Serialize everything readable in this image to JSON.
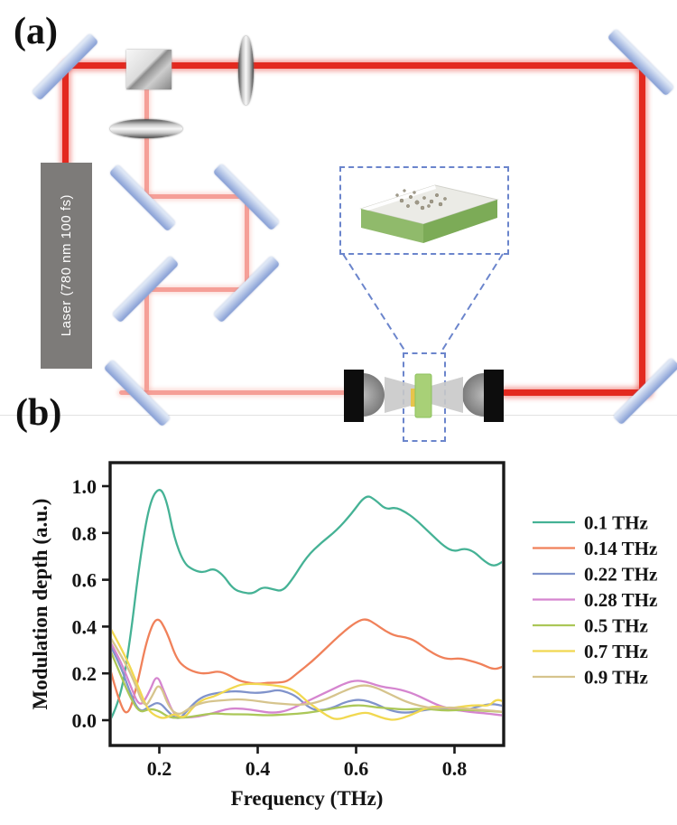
{
  "panel_a": {
    "label": "(a)",
    "laser_label": "Laser (780 nm 100 fs)"
  },
  "panel_b": {
    "label": "(b)"
  },
  "colors": {
    "beam_strong": "#e3291f",
    "beam_weak": "#f3877d",
    "mirror_light": "#dde6f5",
    "mirror_dark": "#8fa6d8",
    "laser_box": "#7d7b79",
    "dashed_outline": "#6b85cc",
    "sample_green": "#a8d077",
    "thz_beam": "#c9c9c9",
    "axis_frame": "#1a1a1a"
  },
  "chart_data": {
    "type": "line",
    "title": "",
    "xlabel": "Frequency (THz)",
    "ylabel": "Modulation depth (a.u.)",
    "xlim": [
      0.1,
      0.9
    ],
    "ylim": [
      -0.11,
      1.1
    ],
    "xticks": [
      0.2,
      0.4,
      0.6,
      0.8
    ],
    "yticks": [
      0.0,
      0.2,
      0.4,
      0.6,
      0.8,
      1.0
    ],
    "grid": false,
    "legend_position": "right",
    "series": [
      {
        "name": "0.1 THz",
        "color": "#45b295",
        "x": [
          0.1,
          0.12,
          0.14,
          0.16,
          0.18,
          0.2,
          0.215,
          0.23,
          0.25,
          0.27,
          0.29,
          0.31,
          0.33,
          0.35,
          0.37,
          0.39,
          0.41,
          0.43,
          0.45,
          0.47,
          0.5,
          0.53,
          0.56,
          0.59,
          0.62,
          0.64,
          0.66,
          0.68,
          0.7,
          0.72,
          0.75,
          0.78,
          0.8,
          0.82,
          0.84,
          0.86,
          0.88,
          0.9
        ],
        "y": [
          0.0,
          0.08,
          0.33,
          0.68,
          0.93,
          1.0,
          0.94,
          0.78,
          0.67,
          0.64,
          0.63,
          0.65,
          0.62,
          0.56,
          0.545,
          0.54,
          0.57,
          0.56,
          0.55,
          0.6,
          0.7,
          0.76,
          0.81,
          0.88,
          0.965,
          0.94,
          0.9,
          0.91,
          0.89,
          0.86,
          0.8,
          0.74,
          0.72,
          0.735,
          0.72,
          0.68,
          0.655,
          0.68
        ]
      },
      {
        "name": "0.14 THz",
        "color": "#f0815a",
        "x": [
          0.1,
          0.115,
          0.135,
          0.155,
          0.175,
          0.195,
          0.215,
          0.235,
          0.255,
          0.28,
          0.3,
          0.32,
          0.34,
          0.36,
          0.38,
          0.4,
          0.42,
          0.44,
          0.46,
          0.48,
          0.51,
          0.54,
          0.57,
          0.6,
          0.62,
          0.64,
          0.66,
          0.68,
          0.7,
          0.72,
          0.745,
          0.77,
          0.79,
          0.81,
          0.83,
          0.855,
          0.88,
          0.9
        ],
        "y": [
          0.22,
          0.1,
          0.005,
          0.15,
          0.35,
          0.45,
          0.38,
          0.26,
          0.22,
          0.2,
          0.2,
          0.21,
          0.195,
          0.17,
          0.16,
          0.155,
          0.16,
          0.16,
          0.165,
          0.2,
          0.25,
          0.31,
          0.37,
          0.42,
          0.435,
          0.41,
          0.38,
          0.36,
          0.355,
          0.34,
          0.3,
          0.27,
          0.26,
          0.265,
          0.255,
          0.24,
          0.215,
          0.23
        ]
      },
      {
        "name": "0.22 THz",
        "color": "#8093cb",
        "x": [
          0.1,
          0.12,
          0.14,
          0.16,
          0.18,
          0.2,
          0.22,
          0.24,
          0.26,
          0.28,
          0.3,
          0.33,
          0.36,
          0.39,
          0.42,
          0.44,
          0.46,
          0.48,
          0.5,
          0.52,
          0.55,
          0.58,
          0.61,
          0.64,
          0.67,
          0.7,
          0.73,
          0.76,
          0.79,
          0.82,
          0.85,
          0.875,
          0.89,
          0.9
        ],
        "y": [
          0.32,
          0.24,
          0.12,
          0.03,
          0.06,
          0.08,
          0.03,
          0.0,
          0.05,
          0.09,
          0.11,
          0.12,
          0.125,
          0.115,
          0.12,
          0.13,
          0.12,
          0.1,
          0.06,
          0.04,
          0.05,
          0.08,
          0.09,
          0.07,
          0.04,
          0.03,
          0.04,
          0.05,
          0.045,
          0.04,
          0.06,
          0.07,
          0.065,
          0.06
        ]
      },
      {
        "name": "0.28 THz",
        "color": "#d585cf",
        "x": [
          0.1,
          0.12,
          0.14,
          0.16,
          0.18,
          0.195,
          0.21,
          0.23,
          0.25,
          0.28,
          0.31,
          0.34,
          0.37,
          0.4,
          0.43,
          0.46,
          0.49,
          0.52,
          0.55,
          0.58,
          0.6,
          0.62,
          0.64,
          0.66,
          0.68,
          0.7,
          0.72,
          0.74,
          0.77,
          0.8,
          0.83,
          0.86,
          0.88,
          0.9
        ],
        "y": [
          0.335,
          0.26,
          0.155,
          0.05,
          0.12,
          0.2,
          0.12,
          0.02,
          0.01,
          0.015,
          0.03,
          0.05,
          0.05,
          0.04,
          0.03,
          0.04,
          0.07,
          0.1,
          0.13,
          0.16,
          0.17,
          0.165,
          0.15,
          0.14,
          0.135,
          0.125,
          0.11,
          0.09,
          0.06,
          0.045,
          0.035,
          0.03,
          0.025,
          0.02
        ]
      },
      {
        "name": "0.5 THz",
        "color": "#abc758",
        "x": [
          0.1,
          0.12,
          0.14,
          0.16,
          0.18,
          0.2,
          0.22,
          0.25,
          0.28,
          0.31,
          0.34,
          0.38,
          0.42,
          0.46,
          0.5,
          0.54,
          0.58,
          0.61,
          0.64,
          0.67,
          0.7,
          0.74,
          0.78,
          0.82,
          0.86,
          0.9
        ],
        "y": [
          0.3,
          0.2,
          0.1,
          0.03,
          0.05,
          0.04,
          0.01,
          0.01,
          0.02,
          0.03,
          0.025,
          0.025,
          0.02,
          0.025,
          0.03,
          0.045,
          0.06,
          0.065,
          0.055,
          0.05,
          0.045,
          0.05,
          0.04,
          0.045,
          0.04,
          0.035
        ]
      },
      {
        "name": "0.7 THz",
        "color": "#f1d850",
        "x": [
          0.1,
          0.13,
          0.155,
          0.175,
          0.19,
          0.21,
          0.23,
          0.25,
          0.27,
          0.29,
          0.31,
          0.33,
          0.35,
          0.37,
          0.4,
          0.43,
          0.46,
          0.48,
          0.5,
          0.52,
          0.54,
          0.56,
          0.59,
          0.62,
          0.64,
          0.66,
          0.68,
          0.71,
          0.74,
          0.76,
          0.79,
          0.82,
          0.85,
          0.87,
          0.885,
          0.9
        ],
        "y": [
          0.395,
          0.28,
          0.155,
          0.05,
          0.02,
          0.005,
          0.03,
          0.005,
          0.06,
          0.09,
          0.1,
          0.12,
          0.14,
          0.155,
          0.155,
          0.15,
          0.14,
          0.12,
          0.08,
          0.05,
          0.02,
          0.0,
          0.02,
          0.035,
          0.02,
          0.005,
          0.0,
          0.02,
          0.05,
          0.06,
          0.05,
          0.06,
          0.065,
          0.06,
          0.09,
          0.08
        ]
      },
      {
        "name": "0.9 THz",
        "color": "#d6c48d",
        "x": [
          0.1,
          0.13,
          0.15,
          0.17,
          0.185,
          0.2,
          0.22,
          0.24,
          0.26,
          0.28,
          0.3,
          0.33,
          0.36,
          0.39,
          0.42,
          0.45,
          0.48,
          0.51,
          0.54,
          0.57,
          0.6,
          0.62,
          0.64,
          0.66,
          0.68,
          0.7,
          0.73,
          0.76,
          0.79,
          0.82,
          0.85,
          0.88,
          0.9
        ],
        "y": [
          0.355,
          0.25,
          0.16,
          0.05,
          0.1,
          0.165,
          0.05,
          0.02,
          0.05,
          0.07,
          0.08,
          0.085,
          0.09,
          0.085,
          0.075,
          0.07,
          0.065,
          0.07,
          0.09,
          0.12,
          0.145,
          0.15,
          0.14,
          0.12,
          0.1,
          0.08,
          0.06,
          0.05,
          0.055,
          0.05,
          0.045,
          0.04,
          0.035
        ]
      }
    ]
  }
}
